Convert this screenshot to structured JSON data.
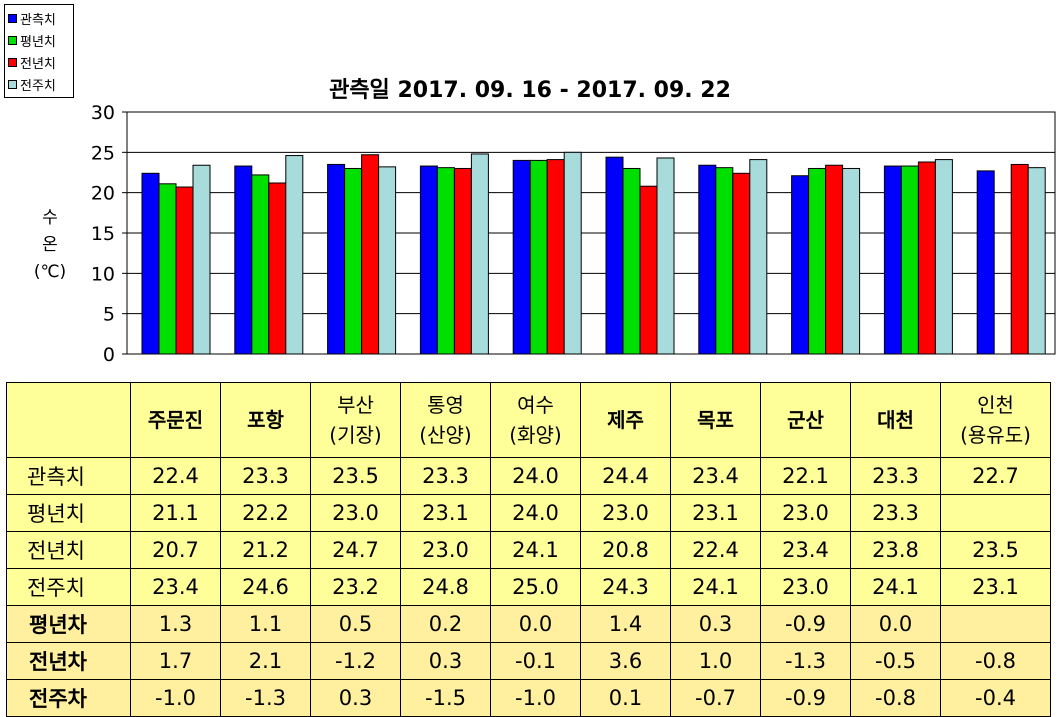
{
  "colors": {
    "obs": "#0000ff",
    "normal": "#00e000",
    "prev_year": "#ff0000",
    "prev_week": "#a8dcdc"
  },
  "chart_data": {
    "type": "bar",
    "title": "관측일 2017. 09. 16 - 2017. 09. 22",
    "ylabel": "수 온 (℃)",
    "xlabel": "",
    "ylim": [
      0,
      30
    ],
    "yticks": [
      0,
      5,
      10,
      15,
      20,
      25,
      30
    ],
    "grid": true,
    "legend_position": "top-left",
    "categories": [
      "주문진",
      "포항",
      "부산(기장)",
      "통영(산양)",
      "여수(화양)",
      "제주",
      "목포",
      "군산",
      "대천",
      "인천(용유도)"
    ],
    "series": [
      {
        "name": "관측치",
        "color": "#0000ff",
        "values": [
          22.4,
          23.3,
          23.5,
          23.3,
          24.0,
          24.4,
          23.4,
          22.1,
          23.3,
          22.7
        ]
      },
      {
        "name": "평년치",
        "color": "#00e000",
        "values": [
          21.1,
          22.2,
          23.0,
          23.1,
          24.0,
          23.0,
          23.1,
          23.0,
          23.3,
          null
        ]
      },
      {
        "name": "전년치",
        "color": "#ff0000",
        "values": [
          20.7,
          21.2,
          24.7,
          23.0,
          24.1,
          20.8,
          22.4,
          23.4,
          23.8,
          23.5
        ]
      },
      {
        "name": "전주치",
        "color": "#a8dcdc",
        "values": [
          23.4,
          24.6,
          23.2,
          24.8,
          25.0,
          24.3,
          24.1,
          23.0,
          24.1,
          23.1
        ]
      }
    ]
  },
  "table": {
    "headers": [
      {
        "line1": "주문진",
        "line2": "",
        "bold": true
      },
      {
        "line1": "포항",
        "line2": "",
        "bold": true
      },
      {
        "line1": "부산",
        "line2": "(기장)",
        "bold": false
      },
      {
        "line1": "통영",
        "line2": "(산양)",
        "bold": false
      },
      {
        "line1": "여수",
        "line2": "(화양)",
        "bold": false
      },
      {
        "line1": "제주",
        "line2": "",
        "bold": true
      },
      {
        "line1": "목포",
        "line2": "",
        "bold": true
      },
      {
        "line1": "군산",
        "line2": "",
        "bold": true
      },
      {
        "line1": "대천",
        "line2": "",
        "bold": true
      },
      {
        "line1": "인천",
        "line2": "(용유도)",
        "bold": false
      }
    ],
    "rows": [
      {
        "label": "관측치",
        "diff": false,
        "values": [
          "22.4",
          "23.3",
          "23.5",
          "23.3",
          "24.0",
          "24.4",
          "23.4",
          "22.1",
          "23.3",
          "22.7"
        ]
      },
      {
        "label": "평년치",
        "diff": false,
        "values": [
          "21.1",
          "22.2",
          "23.0",
          "23.1",
          "24.0",
          "23.0",
          "23.1",
          "23.0",
          "23.3",
          ""
        ]
      },
      {
        "label": "전년치",
        "diff": false,
        "values": [
          "20.7",
          "21.2",
          "24.7",
          "23.0",
          "24.1",
          "20.8",
          "22.4",
          "23.4",
          "23.8",
          "23.5"
        ]
      },
      {
        "label": "전주치",
        "diff": false,
        "values": [
          "23.4",
          "24.6",
          "23.2",
          "24.8",
          "25.0",
          "24.3",
          "24.1",
          "23.0",
          "24.1",
          "23.1"
        ]
      },
      {
        "label": "평년차",
        "diff": true,
        "values": [
          "1.3",
          "1.1",
          "0.5",
          "0.2",
          "0.0",
          "1.4",
          "0.3",
          "-0.9",
          "0.0",
          ""
        ]
      },
      {
        "label": "전년차",
        "diff": true,
        "values": [
          "1.7",
          "2.1",
          "-1.2",
          "0.3",
          "-0.1",
          "3.6",
          "1.0",
          "-1.3",
          "-0.5",
          "-0.8"
        ]
      },
      {
        "label": "전주차",
        "diff": true,
        "values": [
          "-1.0",
          "-1.3",
          "0.3",
          "-1.5",
          "-1.0",
          "0.1",
          "-0.7",
          "-0.9",
          "-0.8",
          "-0.4"
        ]
      }
    ]
  }
}
